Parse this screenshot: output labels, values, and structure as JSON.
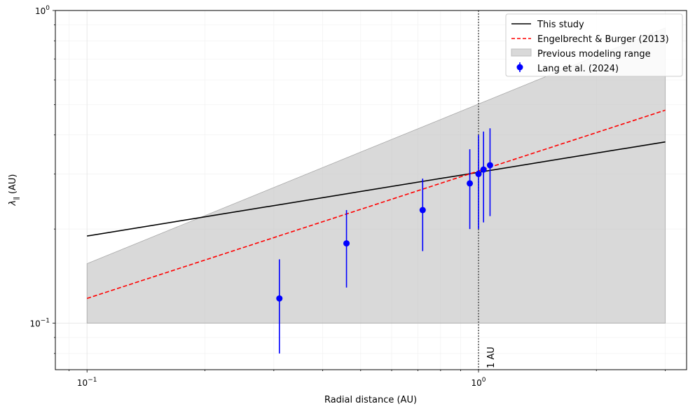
{
  "chart_data": {
    "type": "line",
    "xlabel": "Radial distance (AU)",
    "ylabel_main": "λ",
    "ylabel_sub": "∥",
    "ylabel_unit": "(AU)",
    "xscale": "log",
    "yscale": "log",
    "xlim": [
      0.083,
      3.4
    ],
    "ylim": [
      0.071,
      1.0
    ],
    "grid": true,
    "legend_position": "top-right",
    "x_ticks": [
      {
        "value": 0.1,
        "base": "10",
        "exp": "−1"
      },
      {
        "value": 1.0,
        "base": "10",
        "exp": "0"
      }
    ],
    "y_ticks": [
      {
        "value": 0.1,
        "base": "10",
        "exp": "−1"
      },
      {
        "value": 1.0,
        "base": "10",
        "exp": "0"
      }
    ],
    "reference_line": {
      "x": 1.0,
      "label": "1 AU",
      "color": "#555555"
    },
    "series": [
      {
        "name": "This study",
        "kind": "line",
        "color": "#000000",
        "dash": "solid",
        "x": [
          0.1,
          3.0
        ],
        "y": [
          0.19,
          0.38
        ]
      },
      {
        "name": "Engelbrecht & Burger (2013)",
        "kind": "line",
        "color": "#ff0000",
        "dash": "dashed",
        "x": [
          0.1,
          3.0
        ],
        "y": [
          0.12,
          0.48
        ]
      },
      {
        "name": "Previous modeling range",
        "kind": "band",
        "color": "#bfbfbf",
        "x": [
          0.1,
          3.0
        ],
        "y_low": [
          0.1,
          0.1
        ],
        "y_high": [
          0.155,
          0.88
        ]
      },
      {
        "name": "Lang et al. (2024)",
        "kind": "errorbar",
        "color": "#0000ff",
        "x": [
          0.31,
          0.46,
          0.72,
          0.95,
          1.0,
          1.03,
          1.07
        ],
        "y": [
          0.12,
          0.18,
          0.23,
          0.28,
          0.3,
          0.31,
          0.32
        ],
        "y_low": [
          0.08,
          0.13,
          0.17,
          0.2,
          0.2,
          0.21,
          0.22
        ],
        "y_high": [
          0.16,
          0.23,
          0.29,
          0.36,
          0.4,
          0.41,
          0.42
        ]
      }
    ]
  }
}
